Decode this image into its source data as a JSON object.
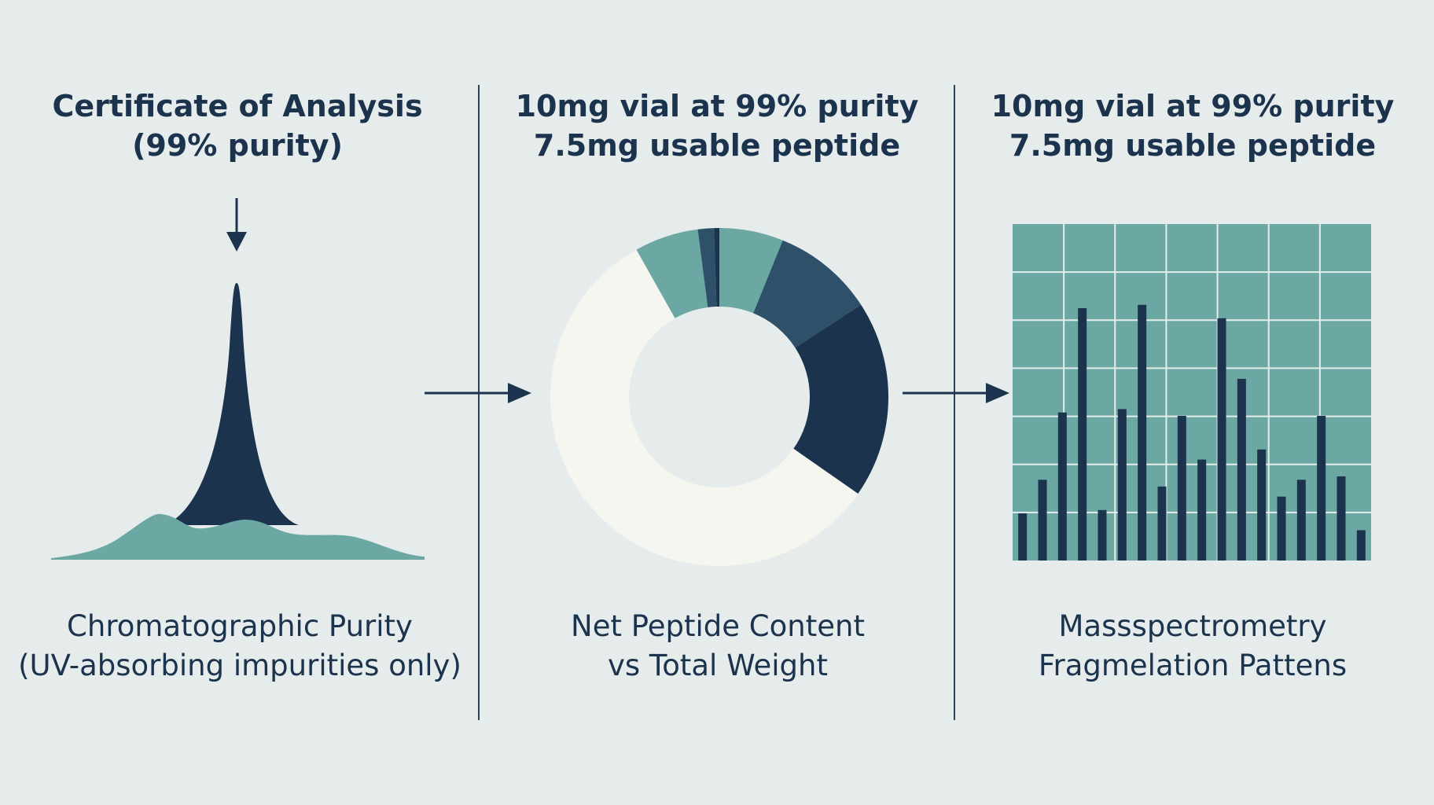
{
  "colors": {
    "background": "#e6ecec",
    "navy": "#1c334d",
    "teal": "#6ba7a3",
    "slate": "#2e5068",
    "cream": "#f6f6f1"
  },
  "panels": [
    {
      "title_lines": [
        "Certificate of Analysis",
        "(99% purity)"
      ],
      "caption_lines": [
        "Chromatographic Purity",
        "(UV-absorbing impurities only)"
      ]
    },
    {
      "title_lines": [
        "10mg vial at 99% purity",
        "7.5mg usable peptide"
      ],
      "caption_lines": [
        "Net Peptide Content",
        "vs Total Weight"
      ]
    },
    {
      "title_lines": [
        "10mg vial at 99% purity",
        "7.5mg usable peptide"
      ],
      "caption_lines": [
        "Massspectrometry",
        "Fragmelation Pattens"
      ]
    }
  ],
  "chart_data": [
    {
      "type": "area",
      "title": "",
      "note": ""
    },
    {
      "type": "pie",
      "donut": true,
      "slices": [
        {
          "value": 6,
          "color": "#6ba7a3"
        },
        {
          "value": 9.5,
          "color": "#2e5068"
        },
        {
          "value": 18.5,
          "color": "#1c334d"
        },
        {
          "value": 56,
          "color": "#f6f6f1"
        },
        {
          "value": 6,
          "color": "#6ba7a3"
        },
        {
          "value": 1.5,
          "color": "#2e5068"
        },
        {
          "value": 0.5,
          "color": "#1c334d"
        }
      ]
    },
    {
      "type": "bar",
      "grid": true,
      "ylim": [
        0,
        100
      ],
      "values": [
        14,
        24,
        44,
        75,
        15,
        45,
        76,
        22,
        43,
        30,
        72,
        54,
        33,
        19,
        24,
        43,
        25,
        9
      ]
    }
  ]
}
